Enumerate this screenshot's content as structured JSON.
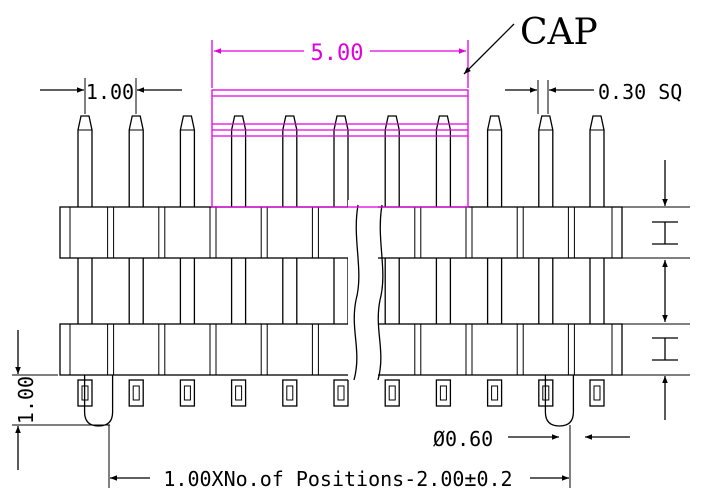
{
  "labels": {
    "cap": "CAP",
    "cap_width": "5.00",
    "pitch": "1.00",
    "pin_square": "0.30 SQ",
    "tail_length": "1.00",
    "tail_diameter": "Ø0.60",
    "overall_length": "1.00XNo.of Positions-2.00±0.2"
  },
  "colors": {
    "line": "#000000",
    "cap_highlight": "#e000e0"
  },
  "pin_count": 11,
  "cap_pin_count": 5
}
